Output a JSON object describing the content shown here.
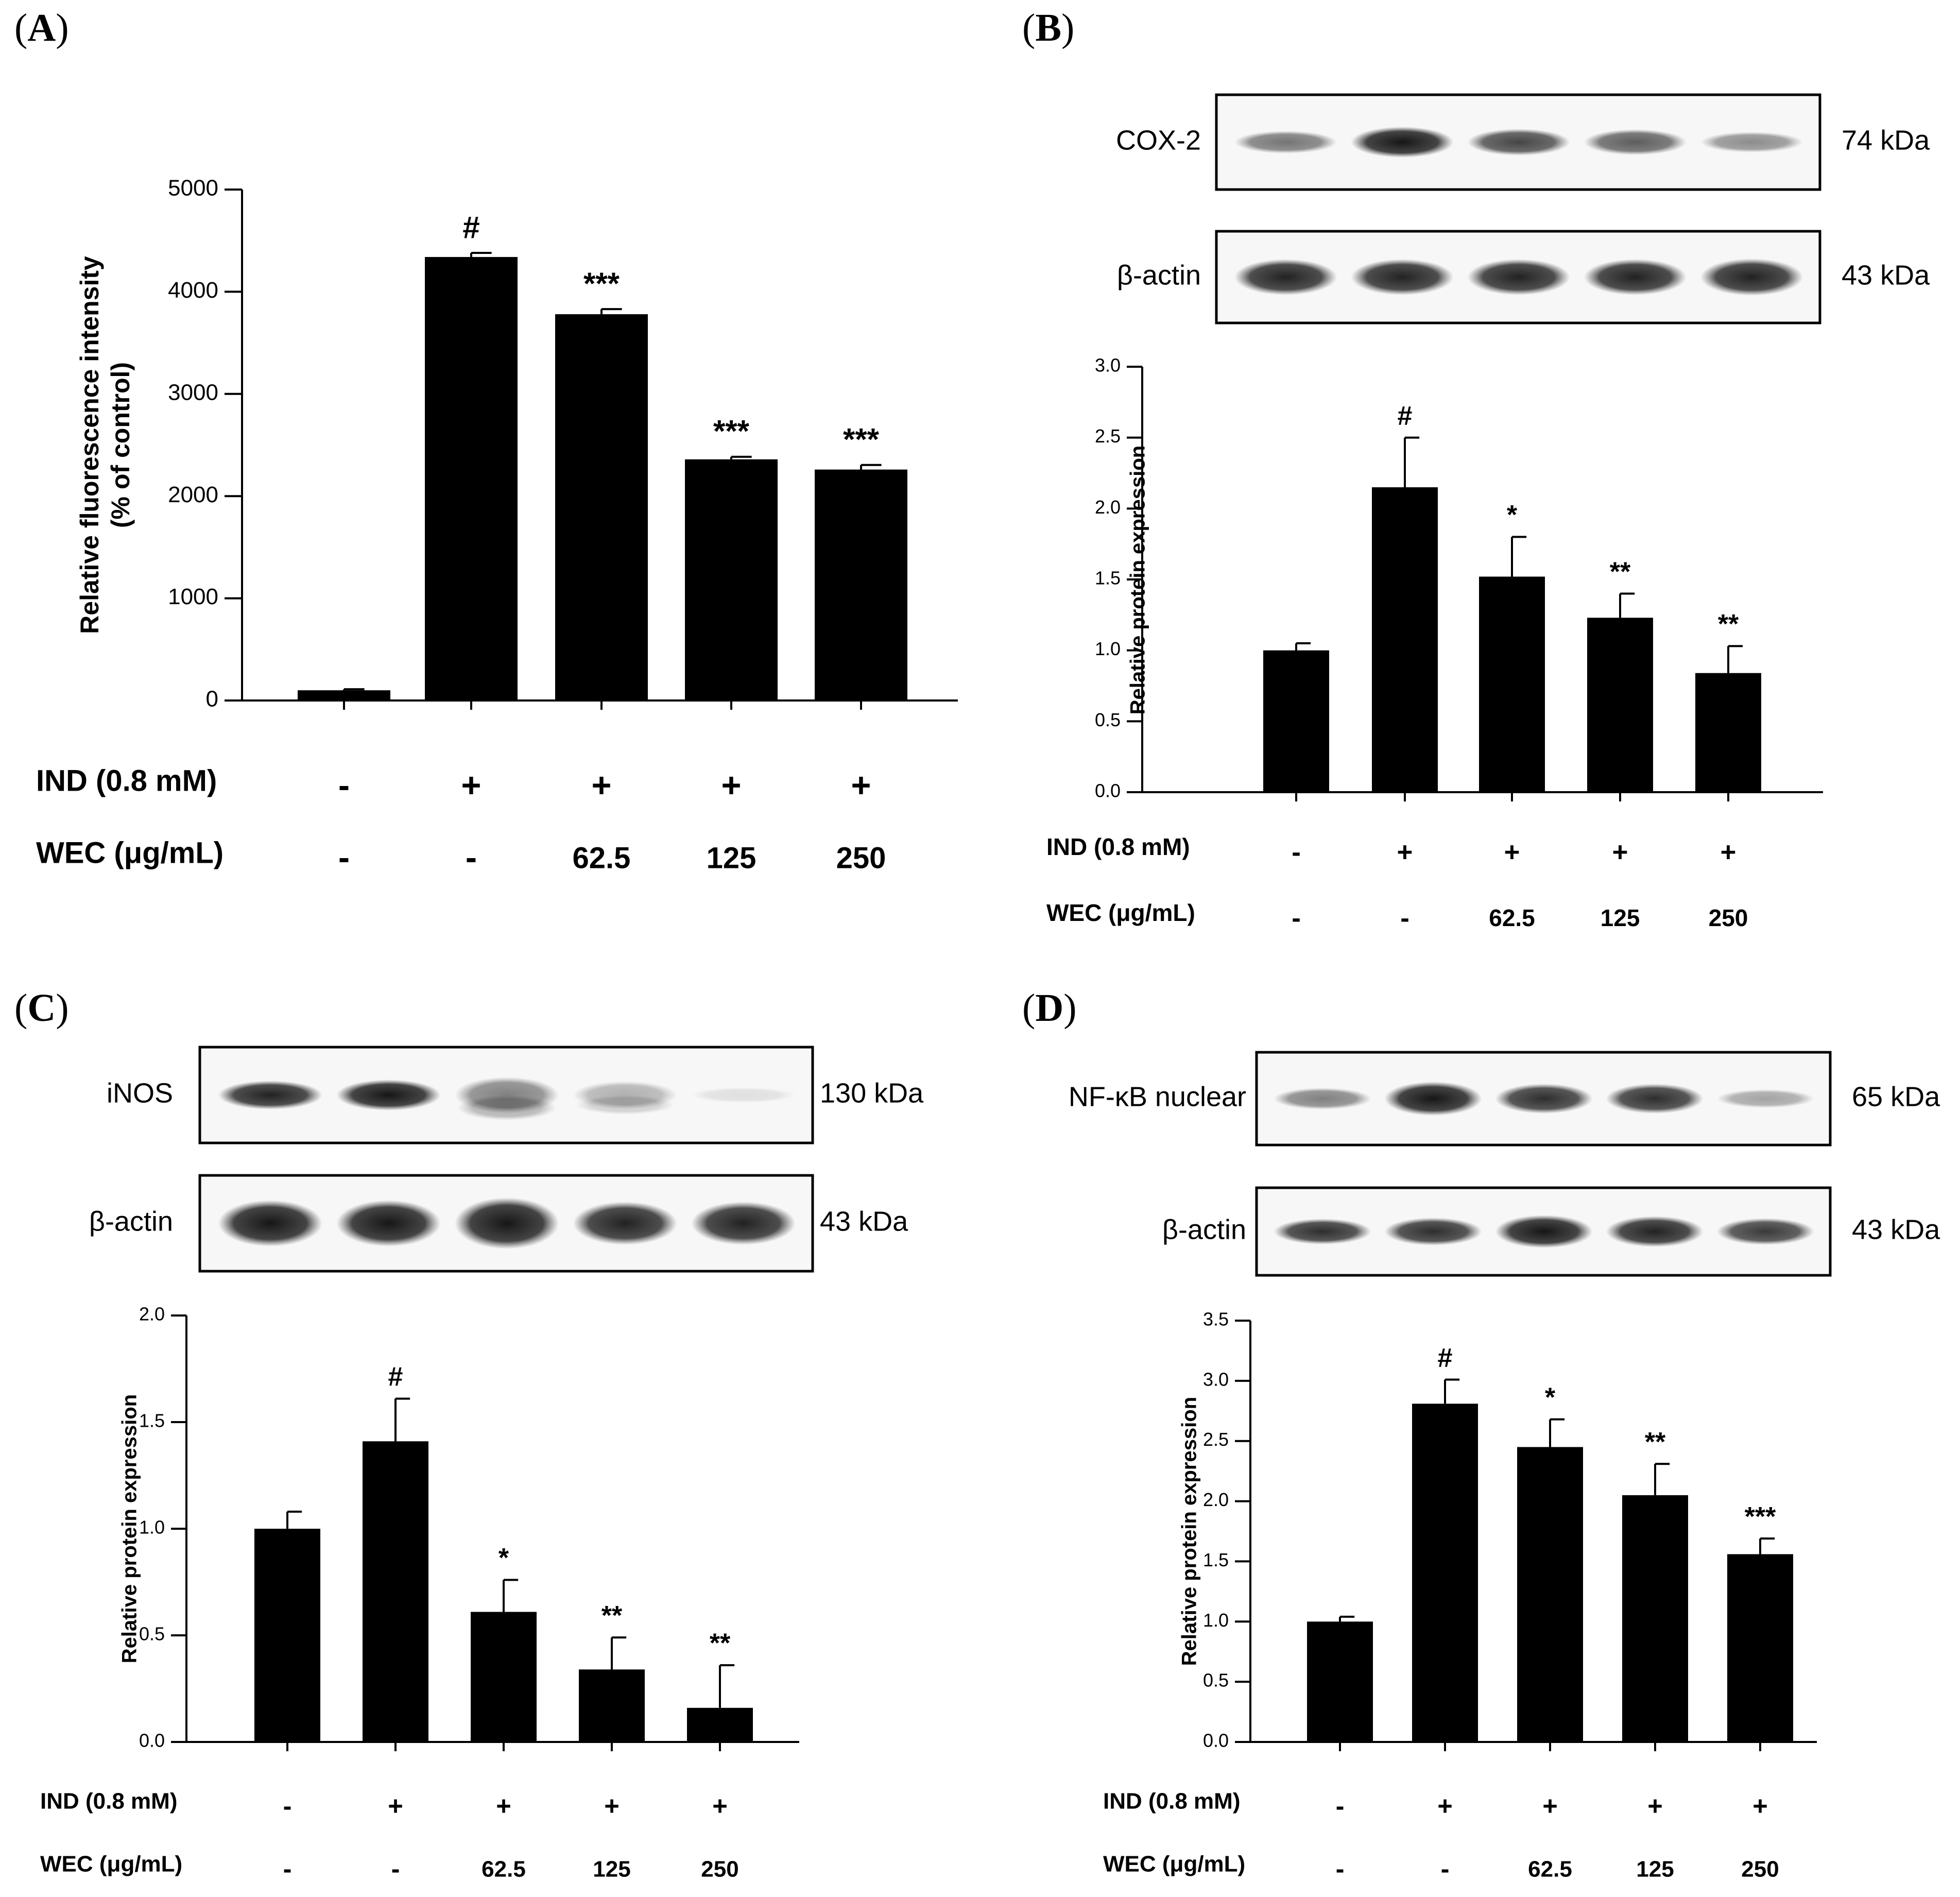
{
  "figure_type": "multi-panel bar charts with western blots",
  "colors": {
    "bar": "#000000",
    "background": "#ffffff",
    "axis": "#000000"
  },
  "chart_data": [
    {
      "type": "bar",
      "panel_label": "A",
      "ylabel_lines": [
        "Relative fluorescence intensity",
        "(% of control)"
      ],
      "ylim": [
        0,
        5000
      ],
      "yticks": [
        "0",
        "1000",
        "2000",
        "3000",
        "4000",
        "5000"
      ],
      "values": [
        100,
        4340,
        3780,
        2360,
        2260
      ],
      "errors": [
        10,
        40,
        50,
        25,
        45
      ],
      "annotations": [
        "",
        "#",
        "***",
        "***",
        "***"
      ],
      "treatments": [
        {
          "label": "IND (0.8 mM)",
          "values": [
            "-",
            "+",
            "+",
            "+",
            "+"
          ]
        },
        {
          "label": "WEC (μg/mL)",
          "values": [
            "-",
            "-",
            "62.5",
            "125",
            "250"
          ]
        }
      ]
    },
    {
      "type": "bar",
      "panel_label": "B",
      "ylabel_lines": [
        "Relative protein expression"
      ],
      "ylim": [
        0,
        3
      ],
      "yticks": [
        "0.0",
        "0.5",
        "1.0",
        "1.5",
        "2.0",
        "2.5",
        "3.0"
      ],
      "values": [
        1.0,
        2.15,
        1.52,
        1.23,
        0.84
      ],
      "errors": [
        0.05,
        0.35,
        0.28,
        0.17,
        0.19
      ],
      "annotations": [
        "",
        "#",
        "*",
        "**",
        "**"
      ],
      "blots": [
        {
          "protein": "COX-2",
          "size": "74 kDa"
        },
        {
          "protein": "β-actin",
          "size": "43 kDa"
        }
      ],
      "treatments": [
        {
          "label": "IND (0.8 mM)",
          "values": [
            "-",
            "+",
            "+",
            "+",
            "+"
          ]
        },
        {
          "label": "WEC (μg/mL)",
          "values": [
            "-",
            "-",
            "62.5",
            "125",
            "250"
          ]
        }
      ]
    },
    {
      "type": "bar",
      "panel_label": "C",
      "ylabel_lines": [
        "Relative protein expression"
      ],
      "ylim": [
        0,
        2
      ],
      "yticks": [
        "0.0",
        "0.5",
        "1.0",
        "1.5",
        "2.0"
      ],
      "values": [
        1.0,
        1.41,
        0.61,
        0.34,
        0.16
      ],
      "errors": [
        0.08,
        0.2,
        0.15,
        0.15,
        0.2
      ],
      "annotations": [
        "",
        "#",
        "*",
        "**",
        "**"
      ],
      "blots": [
        {
          "protein": "iNOS",
          "size": "130 kDa"
        },
        {
          "protein": "β-actin",
          "size": "43 kDa"
        }
      ],
      "treatments": [
        {
          "label": "IND (0.8 mM)",
          "values": [
            "-",
            "+",
            "+",
            "+",
            "+"
          ]
        },
        {
          "label": "WEC (μg/mL)",
          "values": [
            "-",
            "-",
            "62.5",
            "125",
            "250"
          ]
        }
      ]
    },
    {
      "type": "bar",
      "panel_label": "D",
      "ylabel_lines": [
        "Relative protein expression"
      ],
      "ylim": [
        0,
        3.5
      ],
      "yticks": [
        "0.0",
        "0.5",
        "1.0",
        "1.5",
        "2.0",
        "2.5",
        "3.0",
        "3.5"
      ],
      "values": [
        1.0,
        2.81,
        2.45,
        2.05,
        1.56
      ],
      "errors": [
        0.04,
        0.2,
        0.23,
        0.26,
        0.13
      ],
      "annotations": [
        "",
        "#",
        "*",
        "**",
        "***"
      ],
      "blots": [
        {
          "protein": "NF-κB nuclear",
          "size": "65 kDa"
        },
        {
          "protein": "β-actin",
          "size": "43 kDa"
        }
      ],
      "treatments": [
        {
          "label": "IND (0.8 mM)",
          "values": [
            "-",
            "+",
            "+",
            "+",
            "+"
          ]
        },
        {
          "label": "WEC (μg/mL)",
          "values": [
            "-",
            "-",
            "62.5",
            "125",
            "250"
          ]
        }
      ]
    }
  ]
}
